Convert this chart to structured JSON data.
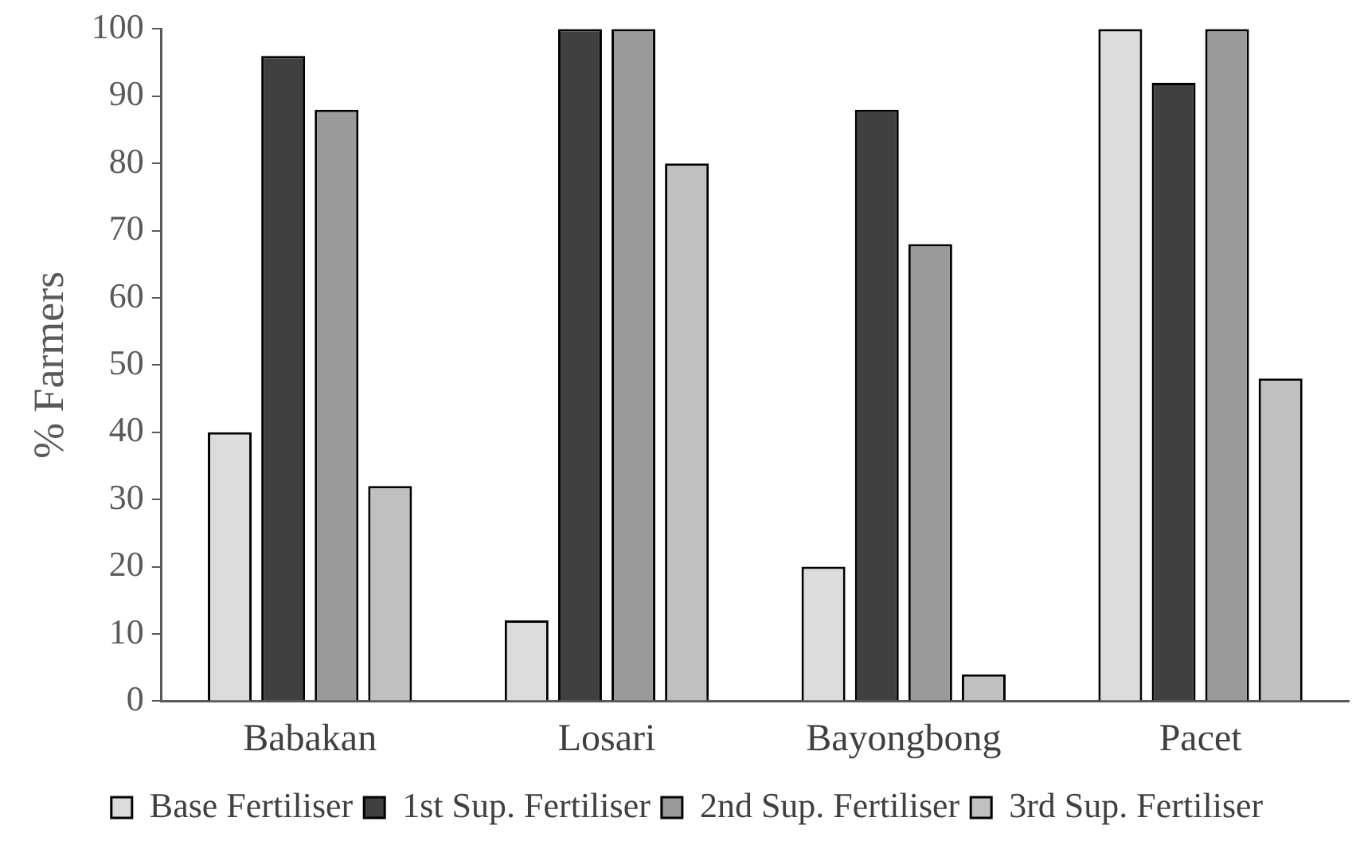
{
  "chart_data": {
    "type": "bar",
    "ylabel": "% Farmers",
    "categories": [
      "Babakan",
      "Losari",
      "Bayongbong",
      "Pacet"
    ],
    "series": [
      {
        "name": "Base Fertiliser",
        "color": "#dcdcdc",
        "values": [
          40,
          12,
          20,
          100
        ]
      },
      {
        "name": "1st Sup. Fertiliser",
        "color": "#404040",
        "values": [
          96,
          100,
          88,
          92
        ]
      },
      {
        "name": "2nd Sup. Fertiliser",
        "color": "#9a9a9a",
        "values": [
          88,
          100,
          68,
          100
        ]
      },
      {
        "name": "3rd Sup. Fertiliser",
        "color": "#c0c0c0",
        "values": [
          32,
          80,
          4,
          48
        ]
      }
    ],
    "ylim": [
      0,
      100
    ],
    "yticks": [
      0,
      10,
      20,
      30,
      40,
      50,
      60,
      70,
      80,
      90,
      100
    ],
    "grid": false,
    "legend": "bottom"
  }
}
